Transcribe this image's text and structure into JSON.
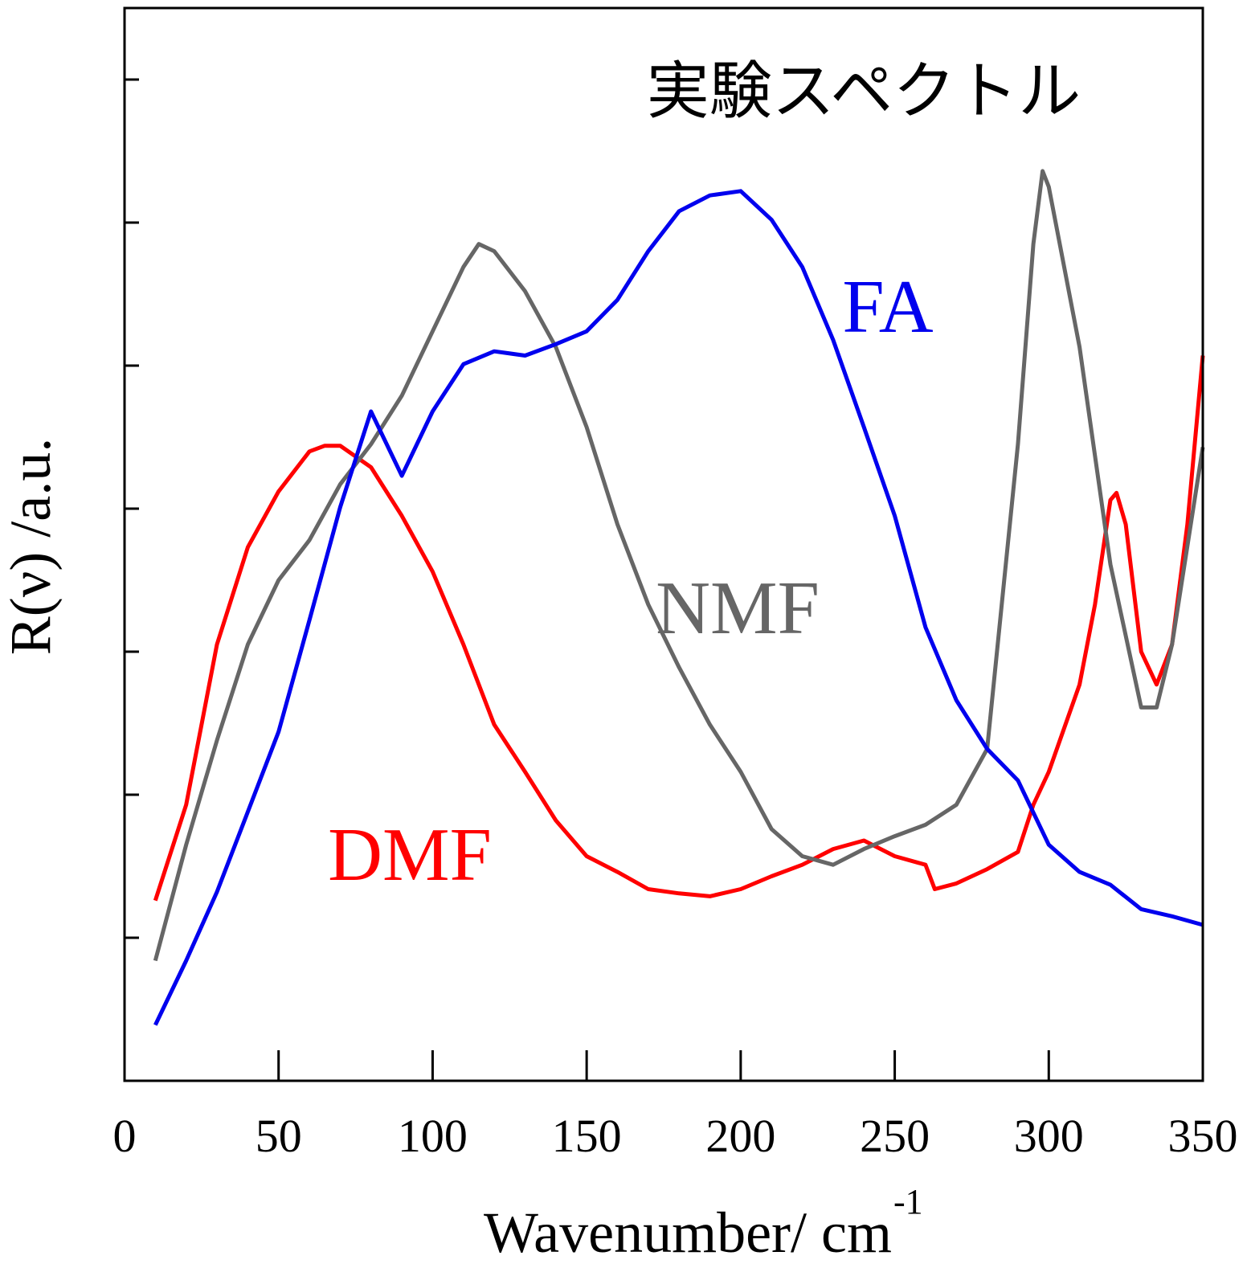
{
  "chart_data": {
    "type": "line",
    "annotations": [
      {
        "text": "実験スペクトル",
        "color": "#000000"
      },
      {
        "text": "FA",
        "color": "#0000ee"
      },
      {
        "text": "NMF",
        "color": "#666666"
      },
      {
        "text": "DMF",
        "color": "#ff0000"
      }
    ],
    "xlabel": "Wavenumber/ cm",
    "xlabel_superscript": "-1",
    "ylabel": "R(ν) /a.u.",
    "xlim": [
      0,
      350
    ],
    "xticks": [
      0,
      50,
      100,
      150,
      200,
      250,
      300,
      350
    ],
    "ylim": [
      0,
      7.5
    ],
    "yticks": [
      1,
      2,
      3,
      4,
      5,
      6,
      7
    ],
    "series": [
      {
        "name": "DMF",
        "color": "#ff0000",
        "x": [
          10,
          20,
          30,
          40,
          50,
          60,
          65,
          70,
          80,
          90,
          100,
          110,
          120,
          130,
          140,
          150,
          160,
          170,
          180,
          190,
          200,
          210,
          220,
          230,
          240,
          250,
          260,
          263,
          270,
          280,
          290,
          295,
          300,
          310,
          315,
          320,
          322,
          325,
          330,
          335,
          340,
          345,
          350
        ],
        "values": [
          1.26,
          1.93,
          3.05,
          3.73,
          4.12,
          4.4,
          4.44,
          4.44,
          4.29,
          3.95,
          3.56,
          3.05,
          2.49,
          2.16,
          1.82,
          1.57,
          1.46,
          1.34,
          1.31,
          1.29,
          1.34,
          1.43,
          1.51,
          1.62,
          1.68,
          1.57,
          1.51,
          1.34,
          1.38,
          1.48,
          1.6,
          1.93,
          2.16,
          2.77,
          3.33,
          4.06,
          4.11,
          3.89,
          3.0,
          2.77,
          3.05,
          3.89,
          5.07
        ]
      },
      {
        "name": "NMF",
        "color": "#666666",
        "x": [
          10,
          20,
          30,
          40,
          50,
          60,
          70,
          80,
          90,
          100,
          110,
          115,
          120,
          130,
          140,
          150,
          160,
          170,
          180,
          190,
          200,
          210,
          220,
          230,
          240,
          250,
          260,
          270,
          280,
          290,
          295,
          298,
          300,
          310,
          320,
          330,
          335,
          340,
          350
        ],
        "values": [
          0.84,
          1.65,
          2.38,
          3.05,
          3.5,
          3.78,
          4.17,
          4.45,
          4.79,
          5.24,
          5.69,
          5.85,
          5.8,
          5.52,
          5.13,
          4.57,
          3.89,
          3.33,
          2.89,
          2.49,
          2.16,
          1.76,
          1.57,
          1.51,
          1.62,
          1.71,
          1.79,
          1.93,
          2.32,
          4.45,
          5.85,
          6.36,
          6.25,
          5.13,
          3.61,
          2.61,
          2.61,
          3.05,
          4.43
        ]
      },
      {
        "name": "FA",
        "color": "#0000ee",
        "x": [
          10,
          20,
          30,
          40,
          50,
          60,
          70,
          80,
          90,
          100,
          110,
          120,
          130,
          140,
          150,
          160,
          170,
          180,
          190,
          200,
          210,
          220,
          230,
          240,
          250,
          260,
          270,
          280,
          290,
          300,
          310,
          320,
          330,
          340,
          350
        ],
        "values": [
          0.39,
          0.84,
          1.32,
          1.88,
          2.44,
          3.22,
          4.01,
          4.68,
          4.23,
          4.68,
          5.01,
          5.1,
          5.07,
          5.15,
          5.24,
          5.46,
          5.8,
          6.08,
          6.19,
          6.22,
          6.02,
          5.69,
          5.18,
          4.57,
          3.95,
          3.17,
          2.66,
          2.32,
          2.1,
          1.65,
          1.46,
          1.37,
          1.2,
          1.15,
          1.09
        ]
      }
    ]
  }
}
